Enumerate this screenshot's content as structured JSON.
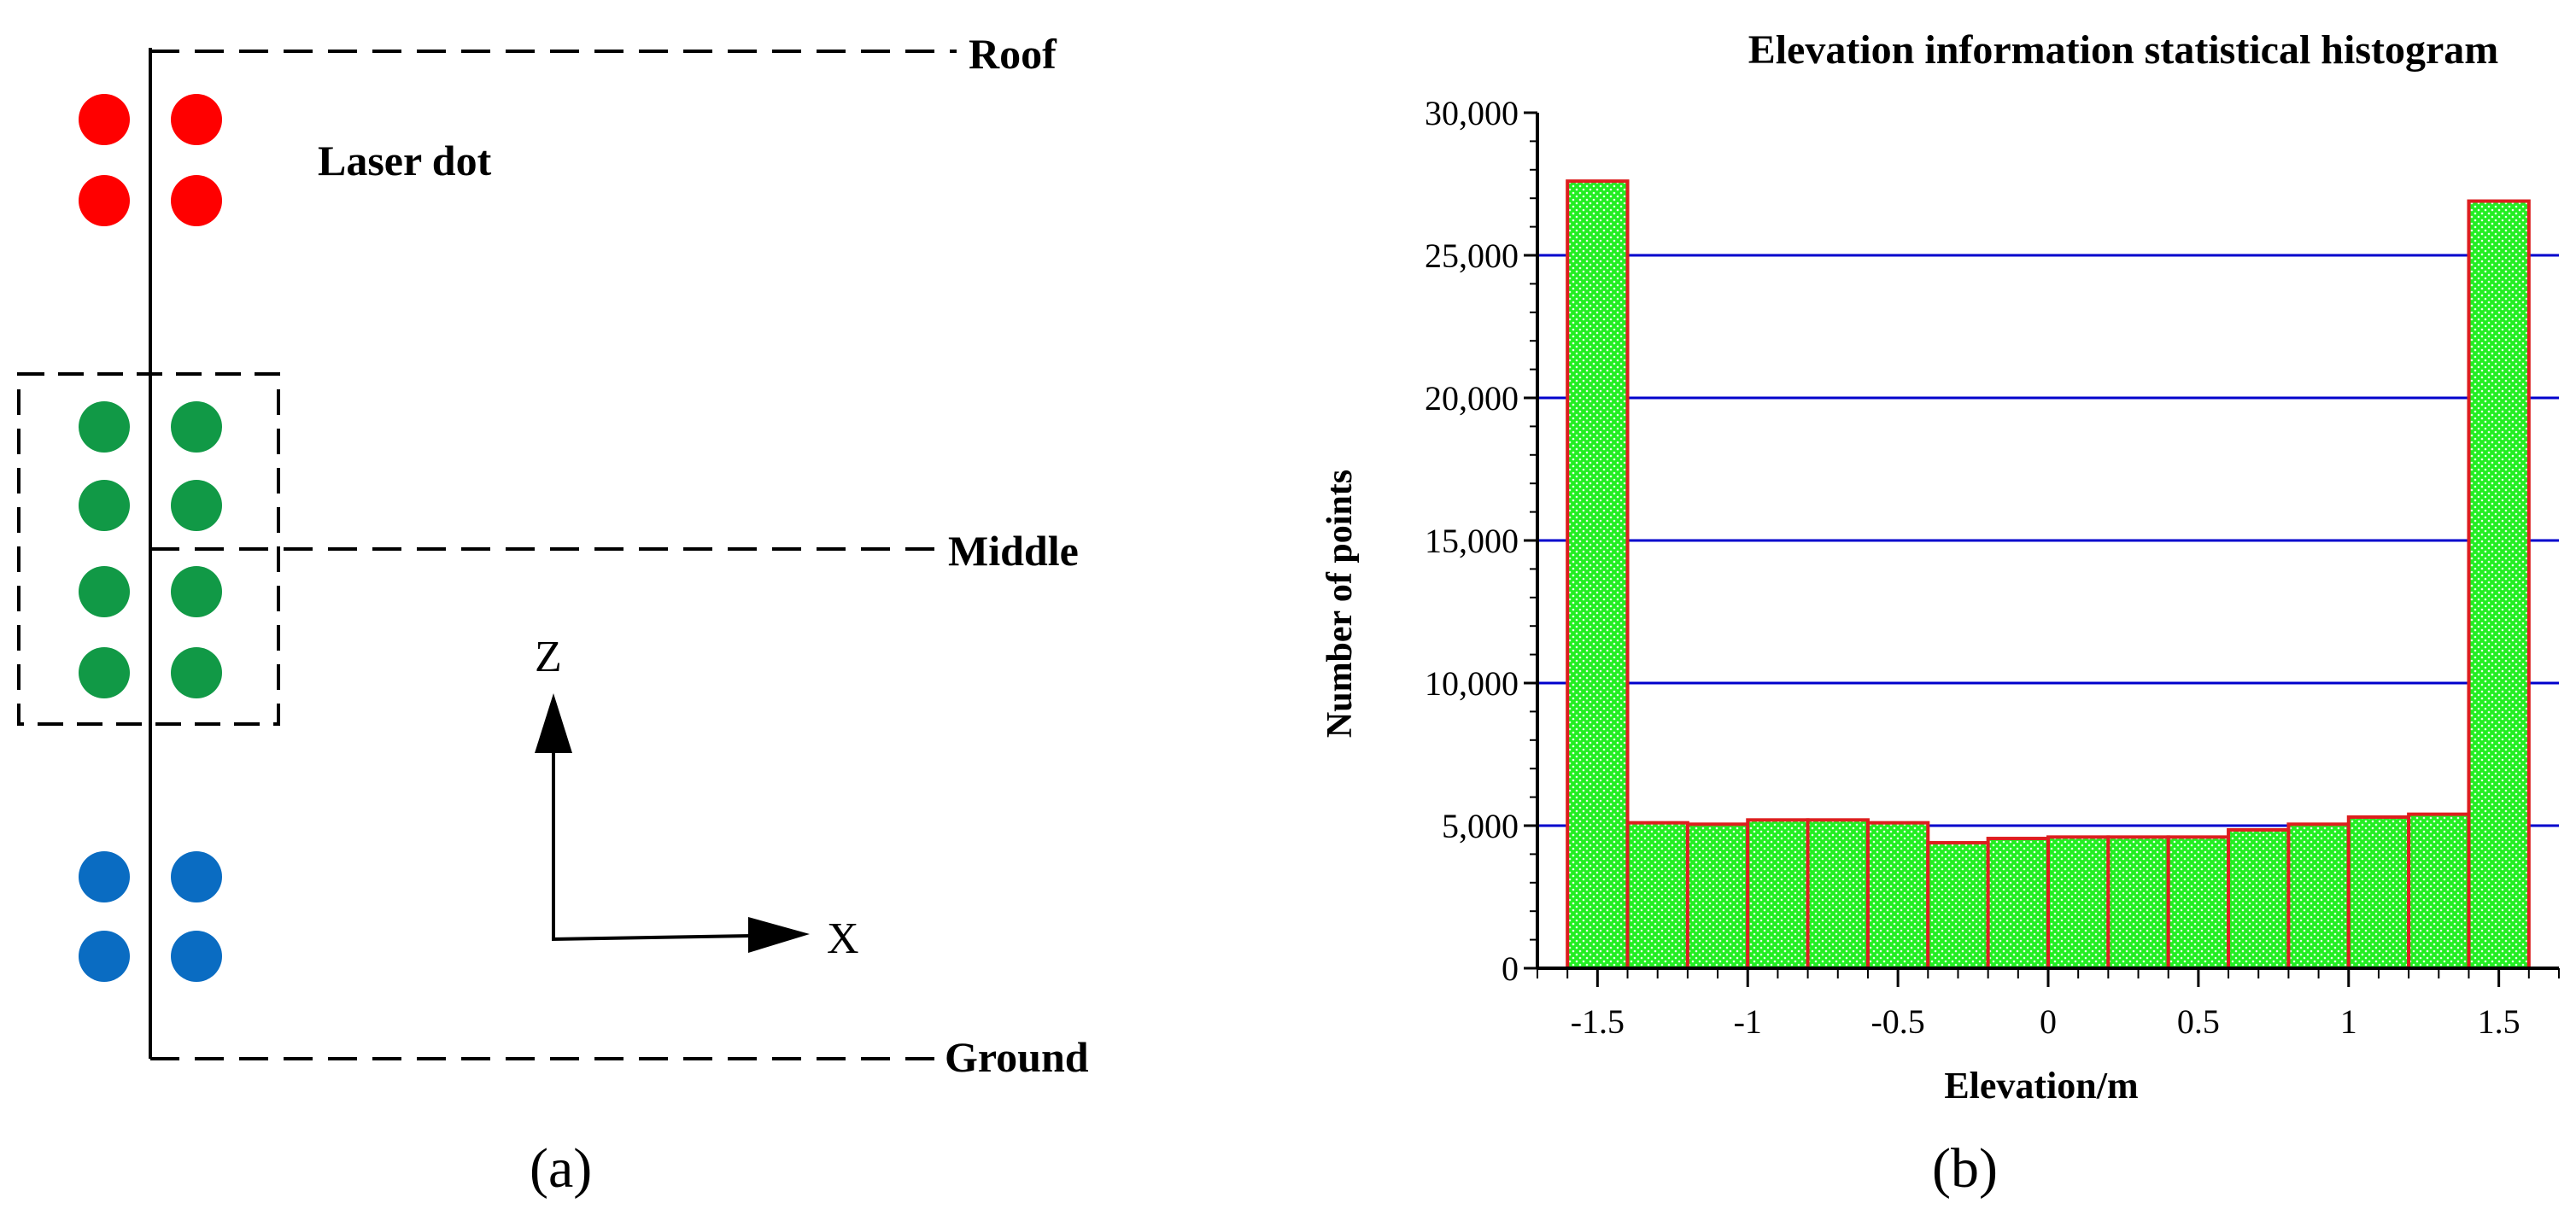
{
  "panel_a": {
    "caption": "(a)",
    "laser_label": "Laser dot",
    "levels": {
      "roof": "Roof",
      "middle": "Middle",
      "ground": "Ground"
    },
    "axes": {
      "z": "Z",
      "x": "X"
    },
    "dot_colors": {
      "roof": "#ff0000",
      "middle": "#119946",
      "ground": "#0a6cc2"
    }
  },
  "panel_b": {
    "caption": "(b)",
    "colors": {
      "bar_fill": "#22ee22",
      "bar_stroke": "#dd1f1f",
      "grid": "#0000cc"
    }
  },
  "chart_data": {
    "type": "bar",
    "title": "Elevation information statistical histogram",
    "xlabel": "Elevation/m",
    "ylabel": "Number of points",
    "xlim": [
      -1.7,
      1.7
    ],
    "ylim": [
      0,
      30000
    ],
    "yticks": [
      0,
      5000,
      10000,
      15000,
      20000,
      25000,
      30000
    ],
    "ytick_labels": [
      "0",
      "5,000",
      "10,000",
      "15,000",
      "20,000",
      "25,000",
      "30,000"
    ],
    "xticks": [
      -1.5,
      -1,
      -0.5,
      0,
      0.5,
      1,
      1.5
    ],
    "xtick_labels": [
      "-1.5",
      "-1",
      "-0.5",
      "0",
      "0.5",
      "1",
      "1.5"
    ],
    "grid": true,
    "bin_width": 0.2,
    "bin_starts": [
      -1.6,
      -1.4,
      -1.2,
      -1.0,
      -0.8,
      -0.6,
      -0.4,
      -0.2,
      0.0,
      0.2,
      0.4,
      0.6,
      0.8,
      1.0,
      1.2,
      1.4
    ],
    "values": [
      27600,
      5100,
      5050,
      5200,
      5200,
      5100,
      4400,
      4550,
      4600,
      4600,
      4600,
      4850,
      5050,
      5300,
      5400,
      26900
    ]
  }
}
